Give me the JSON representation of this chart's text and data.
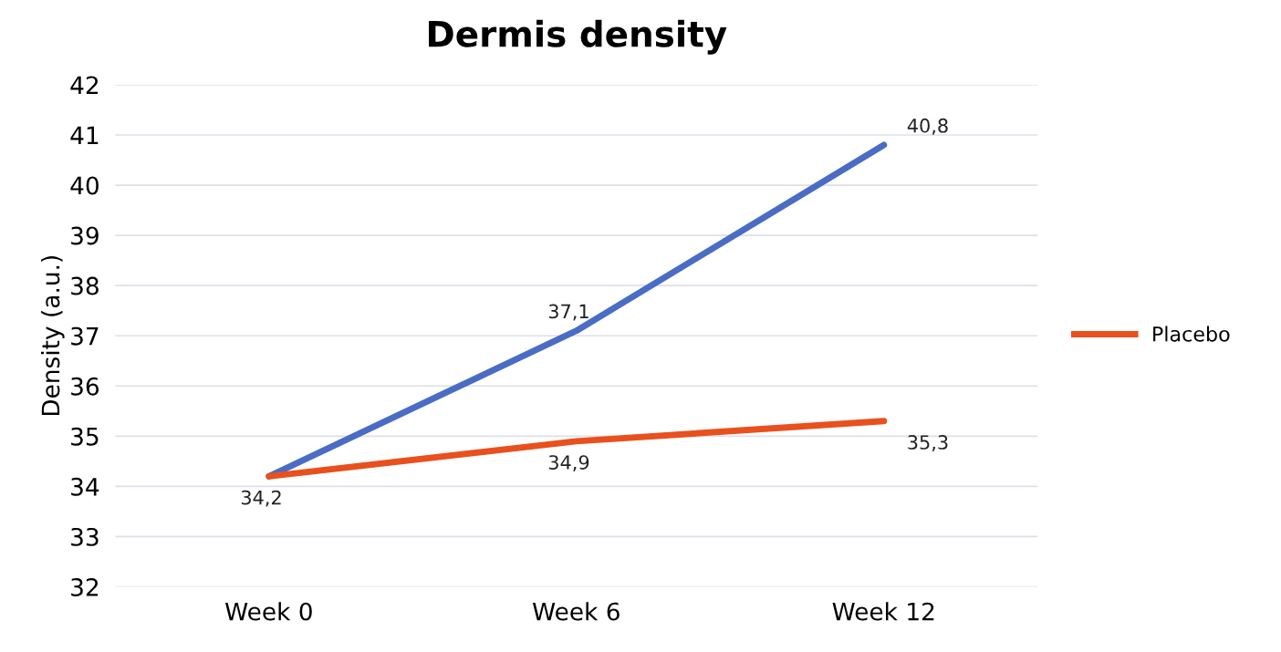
{
  "chart_data": {
    "type": "line",
    "title": "Dermis density",
    "ylabel": "Density (a.u.)",
    "categories": [
      "Week 0",
      "Week 6",
      "Week 12"
    ],
    "series": [
      {
        "color": "#4a6cc4",
        "values": [
          34.2,
          37.1,
          40.8
        ],
        "value_labels": [
          "34,2",
          "37,1",
          "40,8"
        ]
      },
      {
        "name": "Placebo",
        "color": "#e8501e",
        "values": [
          34.2,
          34.9,
          35.3
        ],
        "value_labels": [
          null,
          "34,9",
          "35,3"
        ]
      }
    ],
    "ylim": [
      32,
      42
    ],
    "yticks": [
      32,
      33,
      34,
      35,
      36,
      37,
      38,
      39,
      40,
      41,
      42
    ],
    "grid": "y",
    "legend": "right",
    "marker": "none"
  }
}
